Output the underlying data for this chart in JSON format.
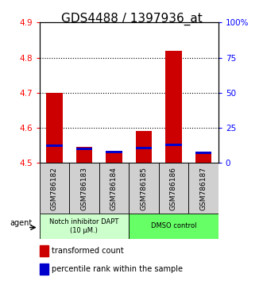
{
  "title": "GDS4488 / 1397936_at",
  "samples": [
    "GSM786182",
    "GSM786183",
    "GSM786184",
    "GSM786185",
    "GSM786186",
    "GSM786187"
  ],
  "red_values": [
    4.7,
    4.545,
    4.535,
    4.592,
    4.82,
    4.53
  ],
  "blue_values": [
    4.545,
    4.537,
    4.528,
    4.54,
    4.548,
    4.526
  ],
  "bar_base": 4.5,
  "ylim_left": [
    4.5,
    4.9
  ],
  "ylim_right": [
    0,
    100
  ],
  "yticks_left": [
    4.5,
    4.6,
    4.7,
    4.8,
    4.9
  ],
  "yticks_right": [
    0,
    25,
    50,
    75,
    100
  ],
  "yticklabels_right": [
    "0",
    "25",
    "50",
    "75",
    "100%"
  ],
  "grid_values": [
    4.6,
    4.7,
    4.8
  ],
  "group1_label": "Notch inhibitor DAPT\n(10 μM.)",
  "group2_label": "DMSO control",
  "group1_color": "#ccffcc",
  "group2_color": "#66ff66",
  "agent_label": "agent",
  "legend_red": "transformed count",
  "legend_blue": "percentile rank within the sample",
  "bar_width": 0.55,
  "red_color": "#cc0000",
  "blue_color": "#0000cc",
  "title_fontsize": 11,
  "gray_box_color": "#d0d0d0"
}
